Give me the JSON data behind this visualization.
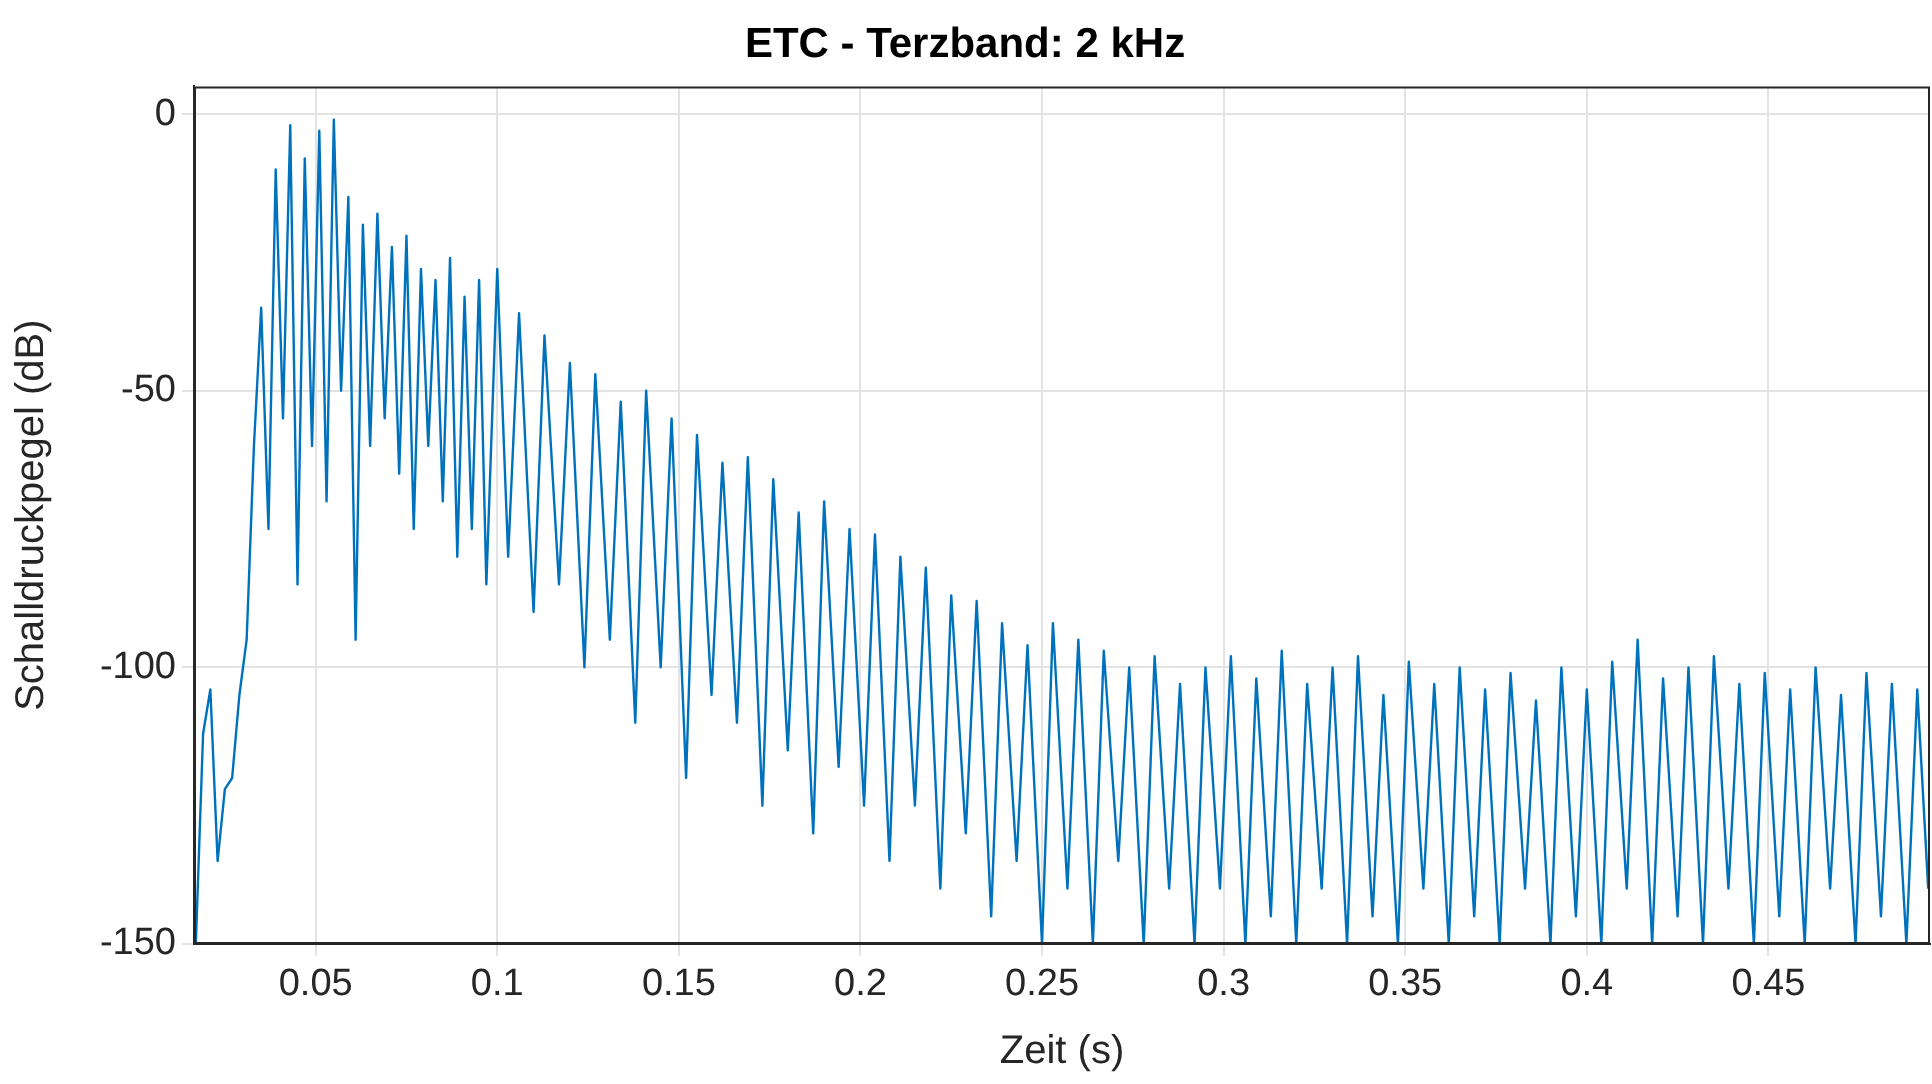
{
  "chart_data": {
    "type": "line",
    "title": "ETC - Terzband: 2 kHz",
    "xlabel": "Zeit (s)",
    "ylabel": "Schalldruckpegel (dB)",
    "xlim": [
      0.0165,
      0.4945
    ],
    "xticks": [
      0.05,
      0.1,
      0.15,
      0.2,
      0.25,
      0.3,
      0.35,
      0.4,
      0.45
    ],
    "ylim": [
      -150,
      5
    ],
    "yticks": [
      -150,
      -100,
      -50,
      0
    ],
    "grid": true,
    "line_style": "solid",
    "marker": "none",
    "series": [
      {
        "color": "#0072bd",
        "x": [
          0.017,
          0.019,
          0.021,
          0.023,
          0.025,
          0.027,
          0.029,
          0.031,
          0.033,
          0.035,
          0.037,
          0.039,
          0.041,
          0.043,
          0.045,
          0.047,
          0.049,
          0.051,
          0.053,
          0.055,
          0.057,
          0.059,
          0.061,
          0.063,
          0.065,
          0.067,
          0.069,
          0.071,
          0.073,
          0.075,
          0.077,
          0.079,
          0.081,
          0.083,
          0.085,
          0.087,
          0.089,
          0.091,
          0.093,
          0.095,
          0.097,
          0.1,
          0.103,
          0.106,
          0.11,
          0.113,
          0.117,
          0.12,
          0.124,
          0.127,
          0.131,
          0.134,
          0.138,
          0.141,
          0.145,
          0.148,
          0.152,
          0.155,
          0.159,
          0.162,
          0.166,
          0.169,
          0.173,
          0.176,
          0.18,
          0.183,
          0.187,
          0.19,
          0.194,
          0.197,
          0.201,
          0.204,
          0.208,
          0.211,
          0.215,
          0.218,
          0.222,
          0.225,
          0.229,
          0.232,
          0.236,
          0.239,
          0.243,
          0.246,
          0.25,
          0.253,
          0.257,
          0.26,
          0.264,
          0.267,
          0.271,
          0.274,
          0.278,
          0.281,
          0.285,
          0.288,
          0.292,
          0.295,
          0.299,
          0.302,
          0.306,
          0.309,
          0.313,
          0.316,
          0.32,
          0.323,
          0.327,
          0.33,
          0.334,
          0.337,
          0.341,
          0.344,
          0.348,
          0.351,
          0.355,
          0.358,
          0.362,
          0.365,
          0.369,
          0.372,
          0.376,
          0.379,
          0.383,
          0.386,
          0.39,
          0.393,
          0.397,
          0.4,
          0.404,
          0.407,
          0.411,
          0.414,
          0.418,
          0.421,
          0.425,
          0.428,
          0.432,
          0.435,
          0.439,
          0.442,
          0.446,
          0.449,
          0.453,
          0.456,
          0.46,
          0.463,
          0.467,
          0.47,
          0.474,
          0.477,
          0.481,
          0.484,
          0.488,
          0.491,
          0.494
        ],
        "values": [
          -150,
          -112,
          -104,
          -135,
          -122,
          -120,
          -105,
          -95,
          -60,
          -35,
          -75,
          -10,
          -55,
          -2,
          -85,
          -8,
          -60,
          -3,
          -70,
          -1,
          -50,
          -15,
          -95,
          -20,
          -60,
          -18,
          -55,
          -24,
          -65,
          -22,
          -75,
          -28,
          -60,
          -30,
          -70,
          -26,
          -80,
          -33,
          -75,
          -30,
          -85,
          -28,
          -80,
          -36,
          -90,
          -40,
          -85,
          -45,
          -100,
          -47,
          -95,
          -52,
          -110,
          -50,
          -100,
          -55,
          -120,
          -58,
          -105,
          -63,
          -110,
          -62,
          -125,
          -66,
          -115,
          -72,
          -130,
          -70,
          -118,
          -75,
          -125,
          -76,
          -135,
          -80,
          -125,
          -82,
          -140,
          -87,
          -130,
          -88,
          -145,
          -92,
          -135,
          -96,
          -150,
          -92,
          -140,
          -95,
          -150,
          -97,
          -135,
          -100,
          -150,
          -98,
          -140,
          -103,
          -150,
          -100,
          -140,
          -98,
          -150,
          -102,
          -145,
          -97,
          -150,
          -103,
          -140,
          -100,
          -150,
          -98,
          -145,
          -105,
          -150,
          -99,
          -140,
          -103,
          -150,
          -100,
          -145,
          -104,
          -150,
          -101,
          -140,
          -106,
          -150,
          -100,
          -145,
          -104,
          -150,
          -99,
          -140,
          -95,
          -150,
          -102,
          -145,
          -100,
          -150,
          -98,
          -140,
          -103,
          -150,
          -101,
          -145,
          -104,
          -150,
          -100,
          -140,
          -105,
          -150,
          -101,
          -145,
          -103,
          -150,
          -104,
          -140
        ]
      }
    ]
  }
}
